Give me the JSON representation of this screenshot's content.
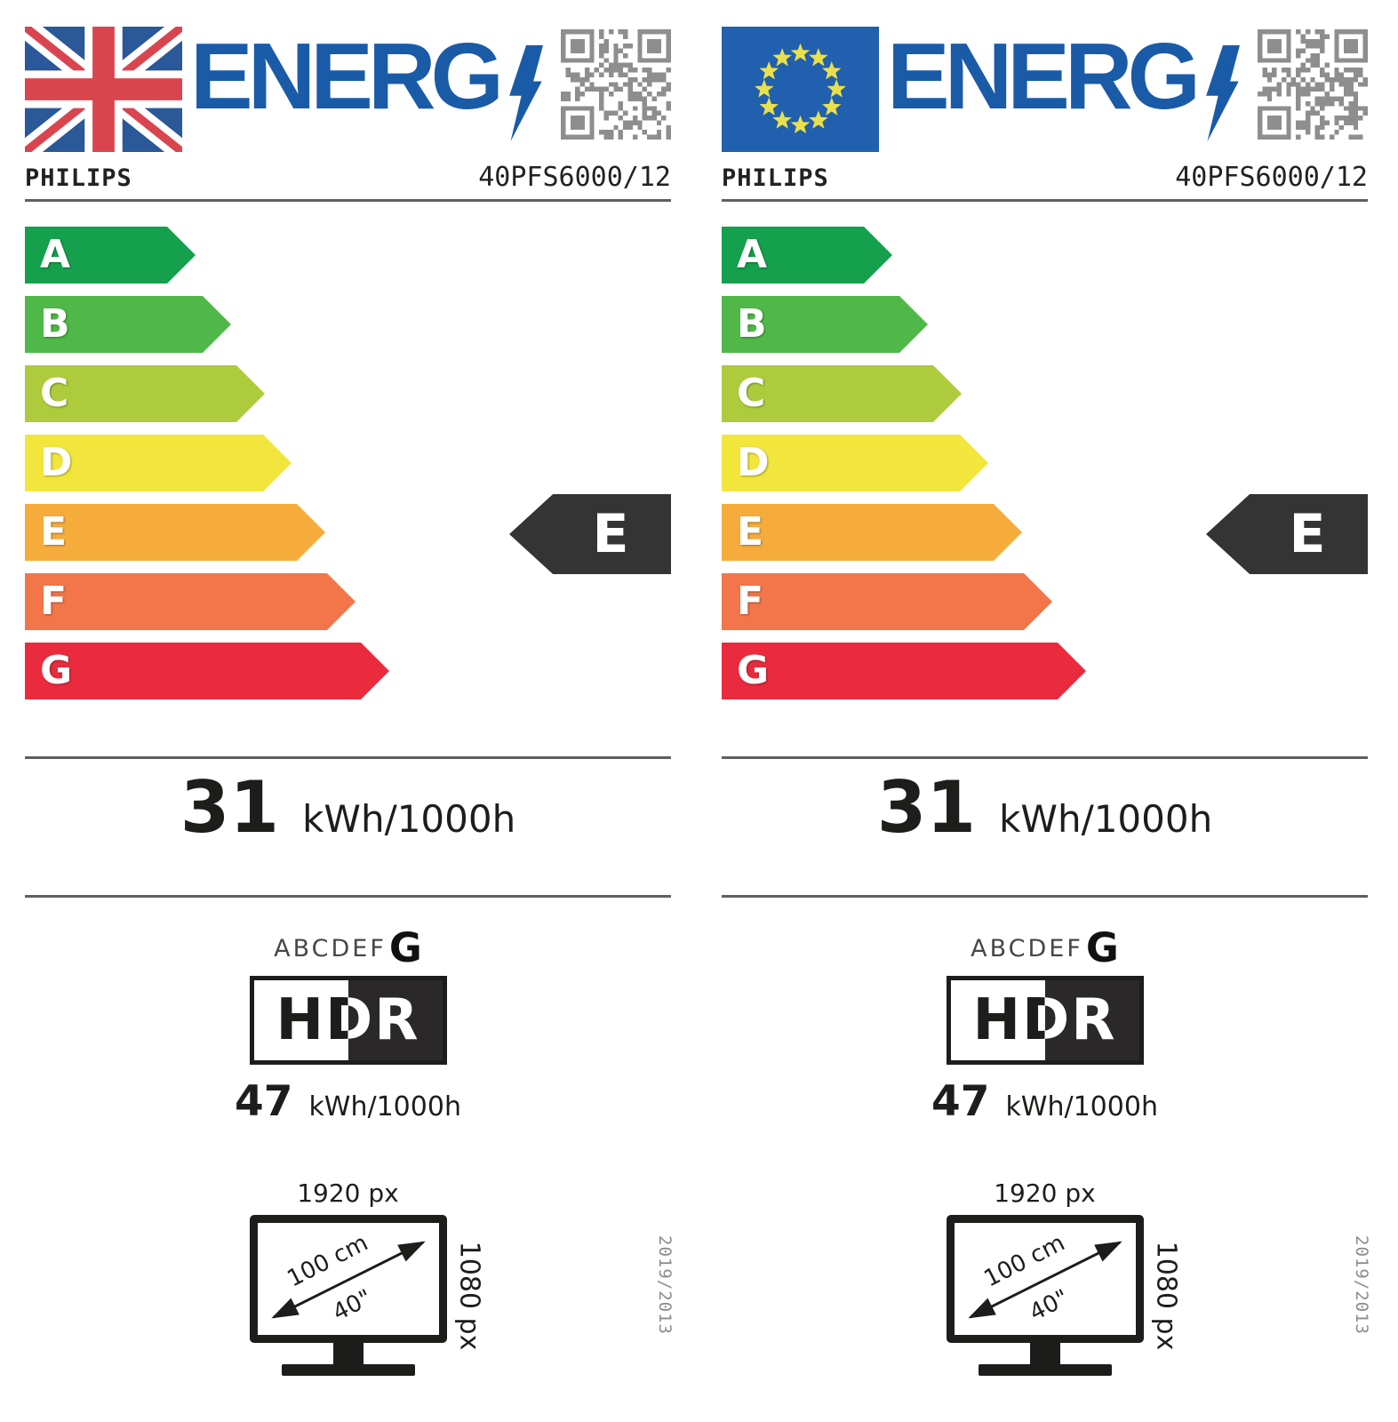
{
  "colors": {
    "energ_blue": "#1A5BA8",
    "bar_a_green": "#14A04D",
    "bar_b_green": "#4FB848",
    "bar_c_yellow_green": "#AECB3D",
    "bar_d_yellow": "#F2E63C",
    "bar_e_orange_yellow": "#F6AC3B",
    "bar_f_orange": "#F2764A",
    "bar_g_red": "#EA2B3D",
    "rating_cursor_dark": "#343434",
    "uk_flag_blue": "#2A5898",
    "uk_flag_red": "#D8454F",
    "eu_flag_blue": "#2160AE",
    "eu_star_yellow": "#E9E04B",
    "qr_gray": "#8E8E8E"
  },
  "labels": [
    {
      "region": "uk",
      "logo_word": "ENERG",
      "brand": "PHILIPS",
      "model": "40PFS6000/12",
      "scale": [
        {
          "letter": "A"
        },
        {
          "letter": "B"
        },
        {
          "letter": "C"
        },
        {
          "letter": "D"
        },
        {
          "letter": "E"
        },
        {
          "letter": "F"
        },
        {
          "letter": "G"
        }
      ],
      "rating": "E",
      "energy_value": "31",
      "energy_unit": "kWh/1000h",
      "sdr_scale_prefix": "ABCDEF",
      "sdr_scale_selected": "G",
      "hdr_logo": "HDR",
      "hdr_value": "47",
      "hdr_unit": "kWh/1000h",
      "screen_width": "1920 px",
      "screen_height": "1080 px",
      "diagonal_cm": "100 cm",
      "diagonal_inch": "40\"",
      "regulation": "2019/2013"
    },
    {
      "region": "eu",
      "logo_word": "ENERG",
      "brand": "PHILIPS",
      "model": "40PFS6000/12",
      "scale": [
        {
          "letter": "A"
        },
        {
          "letter": "B"
        },
        {
          "letter": "C"
        },
        {
          "letter": "D"
        },
        {
          "letter": "E"
        },
        {
          "letter": "F"
        },
        {
          "letter": "G"
        }
      ],
      "rating": "E",
      "energy_value": "31",
      "energy_unit": "kWh/1000h",
      "sdr_scale_prefix": "ABCDEF",
      "sdr_scale_selected": "G",
      "hdr_logo": "HDR",
      "hdr_value": "47",
      "hdr_unit": "kWh/1000h",
      "screen_width": "1920 px",
      "screen_height": "1080 px",
      "diagonal_cm": "100 cm",
      "diagonal_inch": "40\"",
      "regulation": "2019/2013"
    }
  ]
}
